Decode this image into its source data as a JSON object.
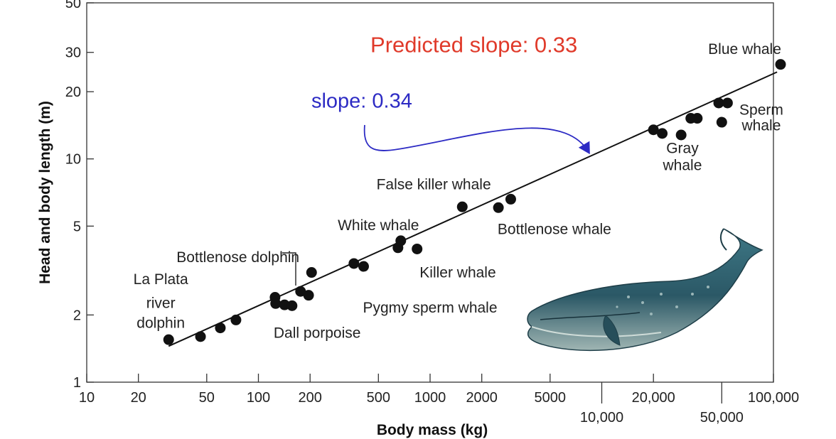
{
  "chart_data": {
    "type": "scatter",
    "title": "",
    "xlabel": "Body mass (kg)",
    "ylabel": "Head and body length (m)",
    "x_scale": "log",
    "y_scale": "log",
    "xlim": [
      10,
      100000
    ],
    "ylim": [
      1,
      50
    ],
    "x_ticks": [
      {
        "value": 10,
        "label": "10",
        "row": 0
      },
      {
        "value": 20,
        "label": "20",
        "row": 0
      },
      {
        "value": 50,
        "label": "50",
        "row": 0
      },
      {
        "value": 100,
        "label": "100",
        "row": 0
      },
      {
        "value": 200,
        "label": "200",
        "row": 0
      },
      {
        "value": 500,
        "label": "500",
        "row": 0
      },
      {
        "value": 1000,
        "label": "1000",
        "row": 0
      },
      {
        "value": 2000,
        "label": "2000",
        "row": 0
      },
      {
        "value": 5000,
        "label": "5000",
        "row": 0
      },
      {
        "value": 10000,
        "label": "10,000",
        "row": 1
      },
      {
        "value": 20000,
        "label": "20,000",
        "row": 0
      },
      {
        "value": 50000,
        "label": "50,000",
        "row": 1
      },
      {
        "value": 100000,
        "label": "100,000",
        "row": 0
      }
    ],
    "y_ticks": [
      {
        "value": 1,
        "label": "1"
      },
      {
        "value": 2,
        "label": "2"
      },
      {
        "value": 5,
        "label": "5"
      },
      {
        "value": 10,
        "label": "10"
      },
      {
        "value": 20,
        "label": "20"
      },
      {
        "value": 30,
        "label": "30"
      },
      {
        "value": 50,
        "label": "50"
      }
    ],
    "points": [
      {
        "x": 30,
        "y": 1.55
      },
      {
        "x": 46,
        "y": 1.6
      },
      {
        "x": 60,
        "y": 1.75
      },
      {
        "x": 74,
        "y": 1.9
      },
      {
        "x": 125,
        "y": 2.4
      },
      {
        "x": 126,
        "y": 2.25
      },
      {
        "x": 142,
        "y": 2.22
      },
      {
        "x": 157,
        "y": 2.2
      },
      {
        "x": 176,
        "y": 2.55
      },
      {
        "x": 196,
        "y": 2.45
      },
      {
        "x": 204,
        "y": 3.1
      },
      {
        "x": 360,
        "y": 3.4
      },
      {
        "x": 410,
        "y": 3.3
      },
      {
        "x": 650,
        "y": 4.0
      },
      {
        "x": 675,
        "y": 4.3
      },
      {
        "x": 840,
        "y": 3.95
      },
      {
        "x": 1540,
        "y": 6.1
      },
      {
        "x": 2500,
        "y": 6.05
      },
      {
        "x": 2950,
        "y": 6.6
      },
      {
        "x": 20000,
        "y": 13.5
      },
      {
        "x": 22500,
        "y": 13.0
      },
      {
        "x": 29000,
        "y": 12.8
      },
      {
        "x": 33000,
        "y": 15.2
      },
      {
        "x": 36000,
        "y": 15.2
      },
      {
        "x": 48000,
        "y": 17.8
      },
      {
        "x": 50000,
        "y": 14.6
      },
      {
        "x": 54000,
        "y": 17.8
      },
      {
        "x": 110000,
        "y": 26.5
      }
    ],
    "fit_line": {
      "x": [
        30,
        105000
      ],
      "y": [
        1.45,
        24.5
      ]
    },
    "species_labels": [
      {
        "text": "Blue whale",
        "x": 68000,
        "y": 29.5,
        "anchor": "middle"
      },
      {
        "text": "Sperm",
        "x": 85000,
        "y": 15.8,
        "anchor": "middle"
      },
      {
        "text": "whale",
        "x": 85000,
        "y": 13.4,
        "anchor": "middle"
      },
      {
        "text": "Gray",
        "x": 29500,
        "y": 10.6,
        "anchor": "middle"
      },
      {
        "text": "whale",
        "x": 29500,
        "y": 8.9,
        "anchor": "middle"
      },
      {
        "text": "False killer whale",
        "x": 1050,
        "y": 7.3,
        "anchor": "middle"
      },
      {
        "text": "White whale",
        "x": 500,
        "y": 4.8,
        "anchor": "middle"
      },
      {
        "text": "Bottlenose whale",
        "x": 5300,
        "y": 4.6,
        "anchor": "middle"
      },
      {
        "text": "Killer whale",
        "x": 1450,
        "y": 2.95,
        "anchor": "middle"
      },
      {
        "text": "Bottlenose dolphin",
        "x": 76,
        "y": 3.45,
        "anchor": "middle"
      },
      {
        "text": "La Plata",
        "x": 27,
        "y": 2.75,
        "anchor": "middle"
      },
      {
        "text": "river",
        "x": 27,
        "y": 2.15,
        "anchor": "middle"
      },
      {
        "text": "dolphin",
        "x": 27,
        "y": 1.75,
        "anchor": "middle"
      },
      {
        "text": "Pygmy sperm whale",
        "x": 1000,
        "y": 2.05,
        "anchor": "middle"
      },
      {
        "text": "Dall porpoise",
        "x": 220,
        "y": 1.58,
        "anchor": "middle"
      }
    ],
    "annotations": {
      "predicted": {
        "text": "Predicted slope: 0.33",
        "x": 1800,
        "y": 30,
        "color": "#e03a2a"
      },
      "observed": {
        "text": "slope: 0.34",
        "x": 400,
        "y": 17,
        "color": "#2d2bc4"
      }
    },
    "colors": {
      "points": "#111111",
      "fit_line": "#111111",
      "axis": "#333333",
      "arrow": "#2d2bc4"
    },
    "grid": false,
    "legend": "none"
  }
}
